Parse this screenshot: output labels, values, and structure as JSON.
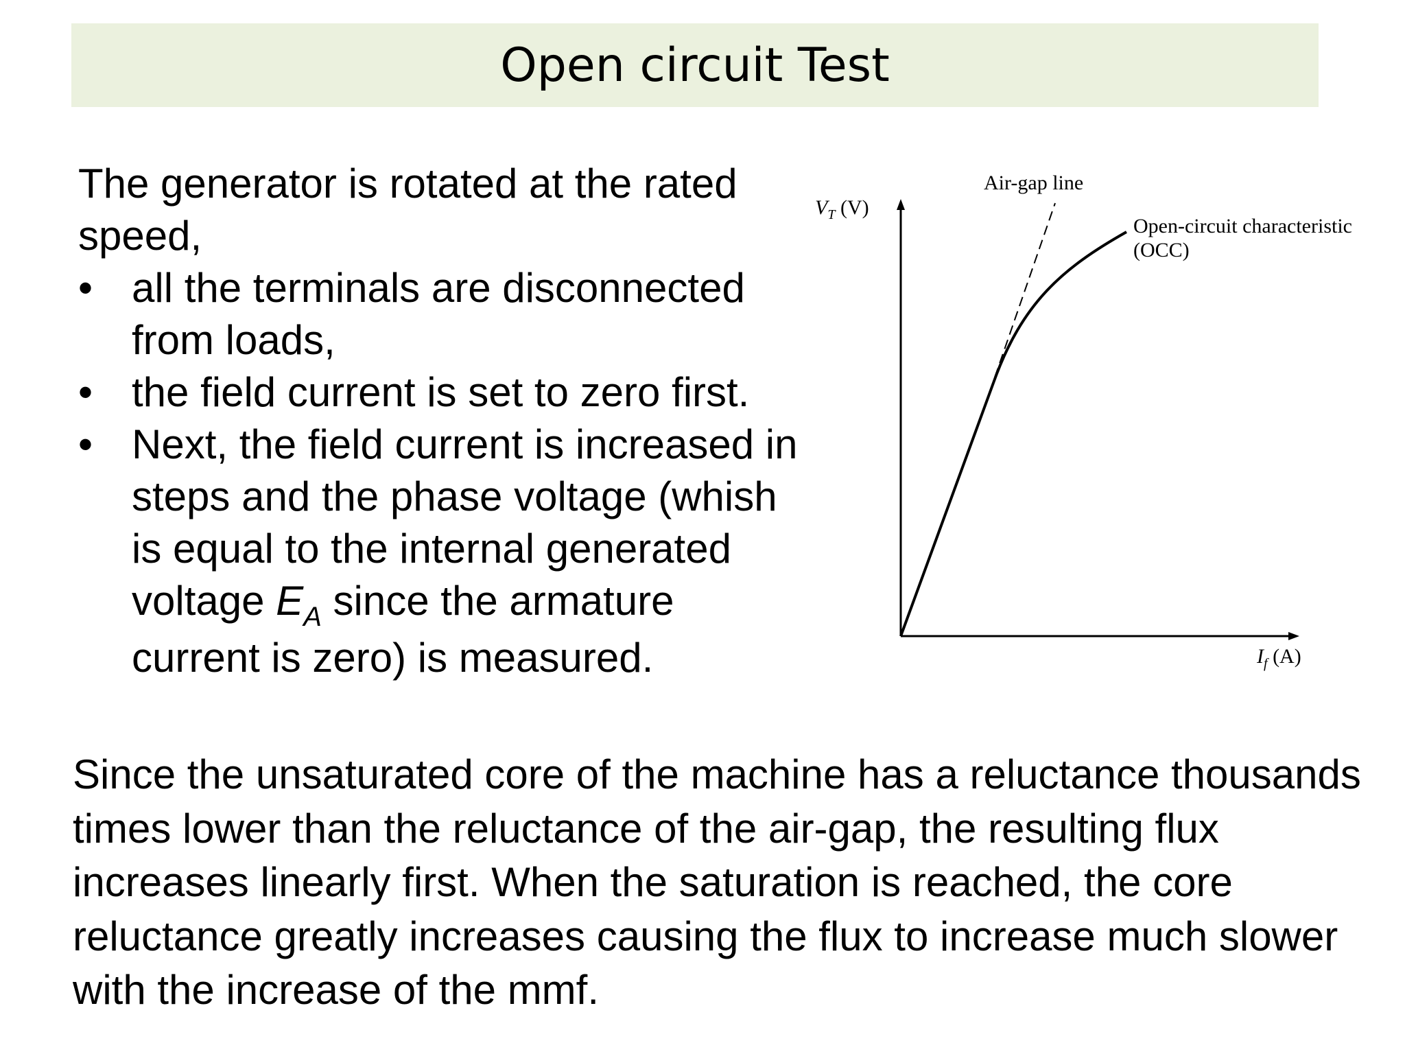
{
  "slide": {
    "title": "Open circuit Test",
    "intro": "The generator is rotated at the rated speed,",
    "bullets": [
      {
        "text": "all the terminals are disconnected from loads,"
      },
      {
        "text": "the field current is set to zero first."
      },
      {
        "before": "Next, the field current is increased in steps and the phase voltage (whish is equal to the internal generated voltage ",
        "symbol": "E",
        "subscript": "A",
        "after": " since the armature current is zero) is measured."
      }
    ],
    "bullet_char": "•",
    "paragraph": "Since the unsaturated core of the machine has a reluctance thousands times lower than the reluctance of the air-gap, the resulting flux increases linearly first. When the saturation is reached, the core reluctance greatly increases causing the flux to increase much slower with the increase of the mmf."
  },
  "diagram": {
    "y_axis_symbol": "V",
    "y_axis_subscript": "T",
    "y_axis_unit": "(V)",
    "x_axis_symbol": "I",
    "x_axis_subscript": "f",
    "x_axis_unit": "(A)",
    "airgap_label": "Air-gap line",
    "occ_label_line1": "Open-circuit characteristic",
    "occ_label_line2": "(OCC)"
  }
}
